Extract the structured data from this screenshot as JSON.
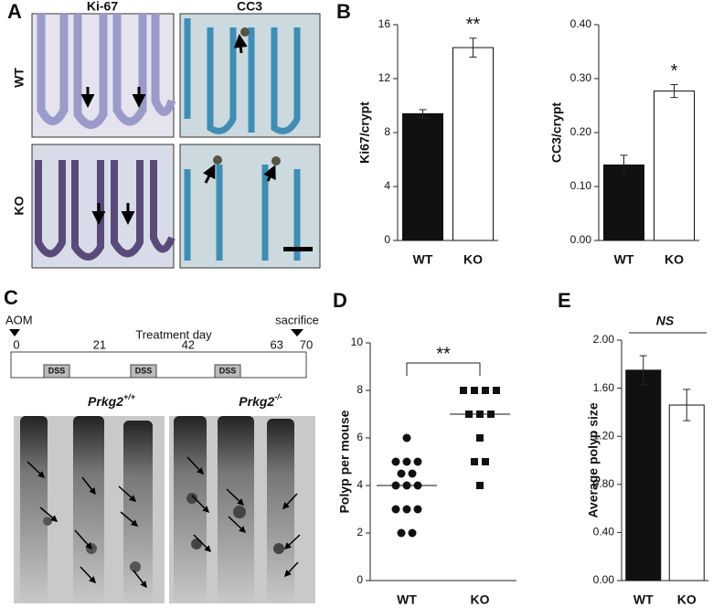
{
  "panels": {
    "letters": [
      "A",
      "B",
      "C",
      "D",
      "E"
    ],
    "micro": {
      "columns": [
        "Ki-67",
        "CC3"
      ],
      "rows": [
        "WT",
        "KO"
      ]
    },
    "timeline": {
      "start_label": "AOM",
      "title": "Treatment day",
      "end_label": "sacrifice",
      "days": [
        0,
        21,
        42,
        63,
        70
      ],
      "phases": [
        "DSS",
        "DSS",
        "DSS"
      ]
    },
    "genotypes": [
      {
        "name": "Prkg2",
        "sup": "+/+"
      },
      {
        "name": "Prkg2",
        "sup": "-/-"
      }
    ]
  },
  "chart_data": [
    {
      "type": "bar",
      "ylabel": "Ki67/crypt",
      "categories": [
        "WT",
        "KO"
      ],
      "values": [
        9.4,
        14.3
      ],
      "errors": [
        0.3,
        0.7
      ],
      "colors": [
        "#111111",
        "#ffffff"
      ],
      "ylim": [
        0,
        16
      ],
      "yticks": [
        0,
        4,
        8,
        12,
        16
      ],
      "annotation": {
        "text": "**",
        "style": "bar"
      }
    },
    {
      "type": "bar",
      "ylabel": "CC3/crypt",
      "categories": [
        "WT",
        "KO"
      ],
      "values": [
        0.14,
        0.277
      ],
      "errors": [
        0.018,
        0.012
      ],
      "colors": [
        "#111111",
        "#ffffff"
      ],
      "ylim": [
        0,
        0.4
      ],
      "yticks": [
        {
          "value": 0,
          "label": "0.00"
        },
        {
          "value": 0.1,
          "label": "0.10"
        },
        {
          "value": 0.2,
          "label": "0.20"
        },
        {
          "value": 0.3,
          "label": "0.30"
        },
        {
          "value": 0.4,
          "label": "0.40"
        }
      ],
      "annotation": {
        "text": "*",
        "style": "bar"
      }
    },
    {
      "type": "strip",
      "ylabel": "Polyp per mouse",
      "categories": [
        "WT",
        "KO"
      ],
      "groups": [
        {
          "values": [
            6,
            5,
            5,
            5,
            4.5,
            4.5,
            4,
            4,
            4,
            3,
            3,
            3,
            2,
            2
          ],
          "marker": "circle"
        },
        {
          "values": [
            8,
            8,
            8,
            8,
            7,
            7,
            7,
            6,
            5,
            5,
            4
          ],
          "marker": "square"
        }
      ],
      "medians": [
        4,
        7
      ],
      "color": "#111111",
      "ylim": [
        0,
        10
      ],
      "yticks": [
        0,
        2,
        4,
        6,
        8,
        10
      ],
      "annotation": {
        "text": "**",
        "style": "bracket"
      }
    },
    {
      "type": "bar",
      "ylabel": "Average polyp size",
      "categories": [
        "WT",
        "KO"
      ],
      "values": [
        1.75,
        1.46
      ],
      "errors": [
        0.12,
        0.13
      ],
      "colors": [
        "#111111",
        "#ffffff"
      ],
      "ylim": [
        0,
        2
      ],
      "yticks": [
        {
          "value": 0,
          "label": "0.00"
        },
        {
          "value": 0.4,
          "label": "0.40"
        },
        {
          "value": 0.8,
          "label": "0.80"
        },
        {
          "value": 1.2,
          "label": "1.20"
        },
        {
          "value": 1.6,
          "label": "1.60"
        },
        {
          "value": 2,
          "label": "2.00"
        }
      ],
      "annotation": {
        "text": "NS",
        "style": "line"
      }
    }
  ]
}
